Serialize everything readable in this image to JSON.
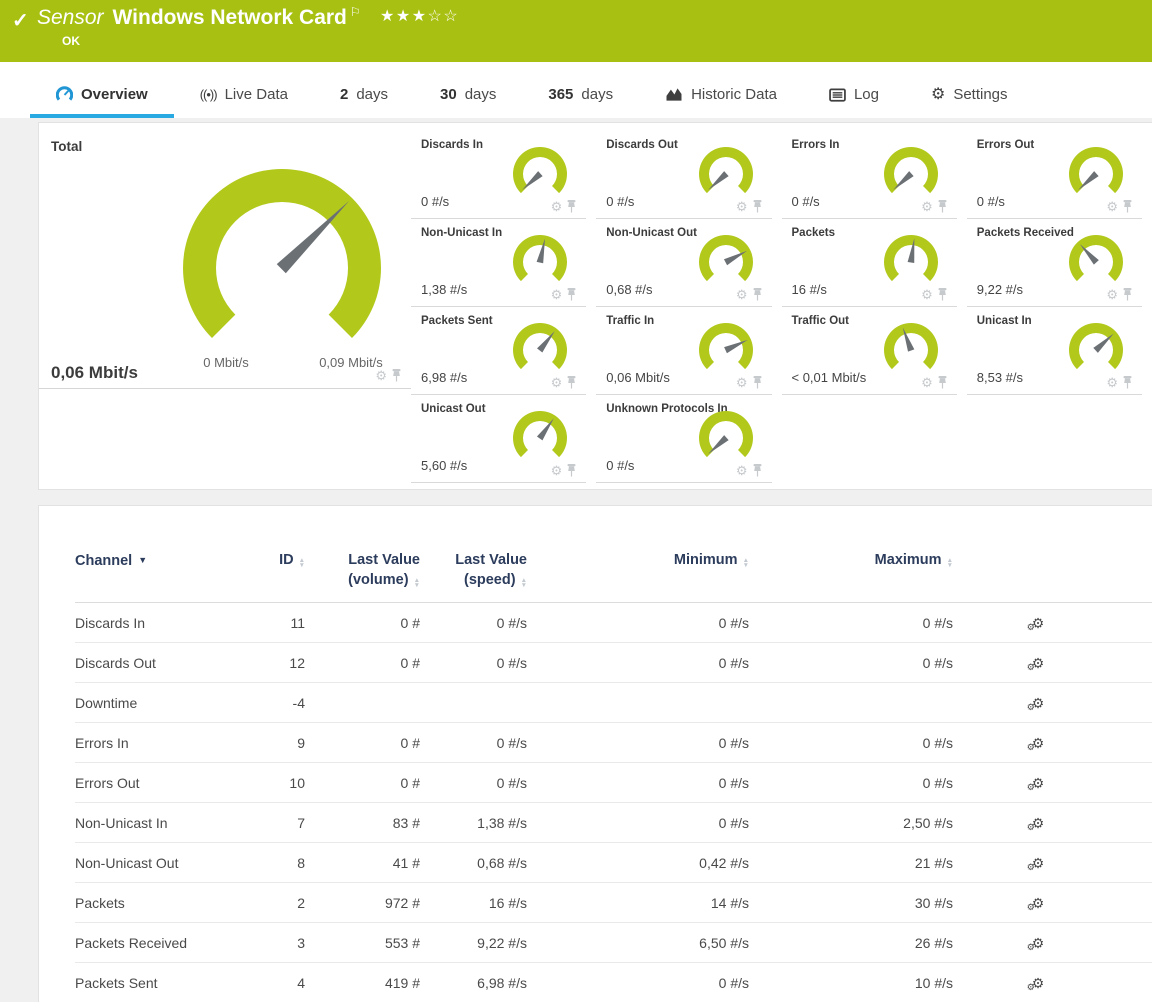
{
  "header": {
    "kind": "Sensor",
    "name": "Windows Network Card",
    "status": "OK",
    "rating": {
      "filled": 3,
      "total": 5
    },
    "check_icon": "check-icon",
    "flag_icon": "flag-icon"
  },
  "tabs": [
    {
      "id": "overview",
      "icon": "gauge-icon",
      "label": "Overview",
      "active": true
    },
    {
      "id": "live-data",
      "icon": "live-data-icon",
      "label": "Live Data",
      "active": false
    },
    {
      "id": "2-days",
      "number": "2",
      "label": "days",
      "active": false
    },
    {
      "id": "30-days",
      "number": "30",
      "label": "days",
      "active": false
    },
    {
      "id": "365-days",
      "number": "365",
      "label": "days",
      "active": false
    },
    {
      "id": "historic-data",
      "icon": "area-chart-icon",
      "label": "Historic Data",
      "active": false
    },
    {
      "id": "log",
      "icon": "log-icon",
      "label": "Log",
      "active": false
    },
    {
      "id": "settings",
      "icon": "settings-gear-icon",
      "label": "Settings",
      "active": false
    }
  ],
  "gauges": {
    "total": {
      "label": "Total",
      "value": "0,06 Mbit/s",
      "min_label": "0 Mbit/s",
      "max_label": "0,09 Mbit/s",
      "needle_angle": 45
    },
    "small": [
      {
        "label": "Discards In",
        "value": "0 #/s",
        "needle_angle": 228
      },
      {
        "label": "Discards Out",
        "value": "0 #/s",
        "needle_angle": 228
      },
      {
        "label": "Errors In",
        "value": "0 #/s",
        "needle_angle": 228
      },
      {
        "label": "Errors Out",
        "value": "0 #/s",
        "needle_angle": 228
      },
      {
        "label": "Non-Unicast In",
        "value": "1,38 #/s",
        "needle_angle": 12
      },
      {
        "label": "Non-Unicast Out",
        "value": "0,68 #/s",
        "needle_angle": 62
      },
      {
        "label": "Packets",
        "value": "16 #/s",
        "needle_angle": 8
      },
      {
        "label": "Packets Received",
        "value": "9,22 #/s",
        "needle_angle": 318
      },
      {
        "label": "Packets Sent",
        "value": "6,98 #/s",
        "needle_angle": 38
      },
      {
        "label": "Traffic In",
        "value": "0,06 Mbit/s",
        "needle_angle": 65
      },
      {
        "label": "Traffic Out",
        "value": "< 0,01 Mbit/s",
        "needle_angle": 340
      },
      {
        "label": "Unicast In",
        "value": "8,53 #/s",
        "needle_angle": 47
      },
      {
        "label": "Unicast Out",
        "value": "5,60 #/s",
        "needle_angle": 35
      },
      {
        "label": "Unknown Protocols In",
        "value": "0 #/s",
        "needle_angle": 228
      }
    ],
    "cell_icons": [
      "gear-icon",
      "pin-icon"
    ]
  },
  "table": {
    "columns": [
      {
        "key": "channel",
        "label": "Channel",
        "sorted": true
      },
      {
        "key": "id",
        "label": "ID",
        "sortable": true
      },
      {
        "key": "volume",
        "label": "Last Value",
        "sub": "(volume)",
        "sortable": true
      },
      {
        "key": "speed",
        "label": "Last Value",
        "sub": "(speed)",
        "sortable": true
      },
      {
        "key": "min",
        "label": "Minimum",
        "sortable": true
      },
      {
        "key": "max",
        "label": "Maximum",
        "sortable": true
      }
    ],
    "rows": [
      {
        "channel": "Discards In",
        "id": "11",
        "volume": "0 #",
        "speed": "0 #/s",
        "min": "0 #/s",
        "max": "0 #/s"
      },
      {
        "channel": "Discards Out",
        "id": "12",
        "volume": "0 #",
        "speed": "0 #/s",
        "min": "0 #/s",
        "max": "0 #/s"
      },
      {
        "channel": "Downtime",
        "id": "-4",
        "volume": "",
        "speed": "",
        "min": "",
        "max": ""
      },
      {
        "channel": "Errors In",
        "id": "9",
        "volume": "0 #",
        "speed": "0 #/s",
        "min": "0 #/s",
        "max": "0 #/s"
      },
      {
        "channel": "Errors Out",
        "id": "10",
        "volume": "0 #",
        "speed": "0 #/s",
        "min": "0 #/s",
        "max": "0 #/s"
      },
      {
        "channel": "Non-Unicast In",
        "id": "7",
        "volume": "83 #",
        "speed": "1,38 #/s",
        "min": "0 #/s",
        "max": "2,50 #/s"
      },
      {
        "channel": "Non-Unicast Out",
        "id": "8",
        "volume": "41 #",
        "speed": "0,68 #/s",
        "min": "0,42 #/s",
        "max": "21 #/s"
      },
      {
        "channel": "Packets",
        "id": "2",
        "volume": "972 #",
        "speed": "16 #/s",
        "min": "14 #/s",
        "max": "30 #/s"
      },
      {
        "channel": "Packets Received",
        "id": "3",
        "volume": "553 #",
        "speed": "9,22 #/s",
        "min": "6,50 #/s",
        "max": "26 #/s"
      },
      {
        "channel": "Packets Sent",
        "id": "4",
        "volume": "419 #",
        "speed": "6,98 #/s",
        "min": "0 #/s",
        "max": "10 #/s"
      }
    ],
    "row_action_icon": "channel-settings-icon"
  },
  "colors": {
    "header_green": "#a8c011",
    "gauge_green": "#b2c91c",
    "needle_gray": "#6b7075",
    "accent_blue": "#29a9e1",
    "icon_blue": "#2196d4",
    "table_header_navy": "#2c3c5c",
    "muted_icon_gray": "#c6cacd"
  }
}
